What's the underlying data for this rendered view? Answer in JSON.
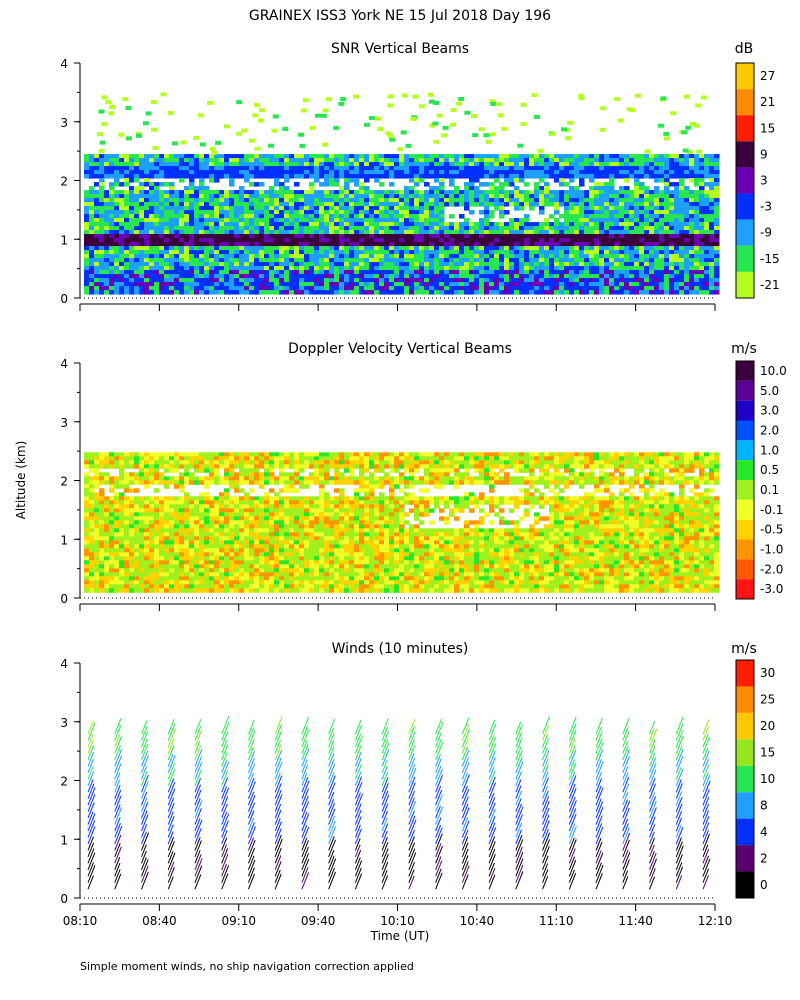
{
  "title": "GRAINEX ISS3 York NE  15 Jul 2018 Day 196",
  "ylabel": "Altitude (km)",
  "xlabel": "Time (UT)",
  "footnote": "Simple moment winds, no ship navigation correction applied",
  "chart_data": [
    {
      "type": "heatmap",
      "title": "SNR Vertical Beams",
      "units": "dB",
      "x_ticks": [
        "08:10",
        "08:40",
        "09:10",
        "09:40",
        "10:10",
        "10:40",
        "11:10",
        "11:40",
        "12:10"
      ],
      "y_ticks": [
        "0",
        "1",
        "2",
        "3",
        "4"
      ],
      "ylim": [
        0,
        4
      ],
      "colorbar": {
        "labels": [
          "27",
          "21",
          "15",
          "9",
          "3",
          "-3",
          "-9",
          "-15",
          "-21"
        ],
        "colors": [
          "#ffc800",
          "#ff8c00",
          "#ff1e00",
          "#3c003c",
          "#6a00b4",
          "#0030ff",
          "#1ea0ff",
          "#28e650",
          "#b4ff1e"
        ]
      }
    },
    {
      "type": "heatmap",
      "title": "Doppler Velocity Vertical Beams",
      "units": "m/s",
      "x_ticks": [
        "08:10",
        "08:40",
        "09:10",
        "09:40",
        "10:10",
        "10:40",
        "11:10",
        "11:40",
        "12:10"
      ],
      "y_ticks": [
        "0",
        "1",
        "2",
        "3",
        "4"
      ],
      "ylim": [
        0,
        4
      ],
      "colorbar": {
        "labels": [
          "10.0",
          "5.0",
          "3.0",
          "2.0",
          "1.0",
          "0.5",
          "0.1",
          "-0.1",
          "-0.5",
          "-1.0",
          "-2.0",
          "-3.0"
        ],
        "colors": [
          "#3c003c",
          "#5a0096",
          "#1e00c8",
          "#0050ff",
          "#00b4ff",
          "#28e628",
          "#a0f01e",
          "#f0ff28",
          "#ffd200",
          "#ff9600",
          "#ff5a00",
          "#ff1414"
        ]
      }
    },
    {
      "type": "scatter",
      "title": "Winds (10 minutes)",
      "units": "m/s",
      "x_ticks": [
        "08:10",
        "08:40",
        "09:10",
        "09:40",
        "10:10",
        "10:40",
        "11:10",
        "11:40",
        "12:10"
      ],
      "y_ticks": [
        "0",
        "1",
        "2",
        "3",
        "4"
      ],
      "ylim": [
        0,
        4
      ],
      "colorbar": {
        "labels": [
          "30",
          "25",
          "20",
          "15",
          "10",
          "8",
          "4",
          "2",
          "0"
        ],
        "colors": [
          "#ff1e00",
          "#ff8c00",
          "#ffc800",
          "#96e61e",
          "#28e650",
          "#1ea0ff",
          "#0030ff",
          "#5a006e",
          "#000000"
        ]
      }
    }
  ]
}
